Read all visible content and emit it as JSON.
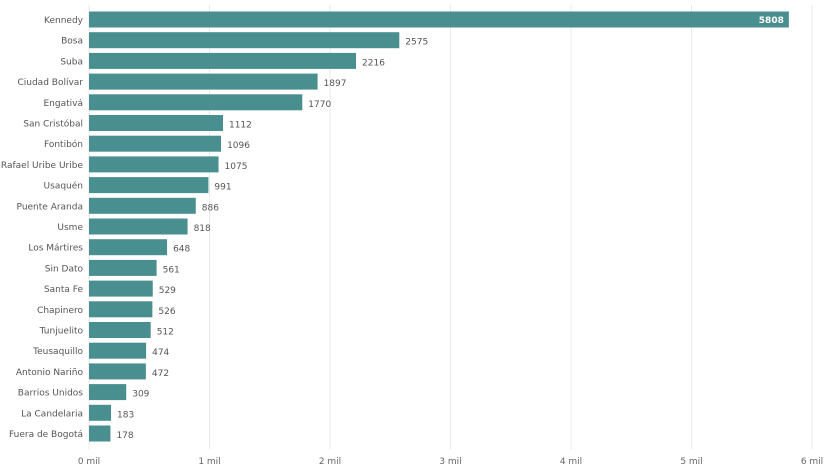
{
  "chart_data": {
    "type": "bar",
    "orientation": "horizontal",
    "title": "",
    "xlabel": "",
    "ylabel": "",
    "xlim": [
      0,
      6000
    ],
    "grid": true,
    "bar_color": "#4a8f8f",
    "categories": [
      "Kennedy",
      "Bosa",
      "Suba",
      "Ciudad Bolívar",
      "Engativá",
      "San Cristóbal",
      "Fontibón",
      "Rafael Uribe Uribe",
      "Usaquén",
      "Puente Aranda",
      "Usme",
      "Los Mártires",
      "Sin Dato",
      "Santa Fe",
      "Chapinero",
      "Tunjuelito",
      "Teusaquillo",
      "Antonio Nariño",
      "Barrios Unidos",
      "La Candelaria",
      "Fuera de Bogotá"
    ],
    "values": [
      5808,
      2575,
      2216,
      1897,
      1770,
      1112,
      1096,
      1075,
      991,
      886,
      818,
      648,
      561,
      529,
      526,
      512,
      474,
      472,
      309,
      183,
      178
    ],
    "x_ticks": [
      0,
      1000,
      2000,
      3000,
      4000,
      5000,
      6000
    ],
    "x_tick_labels": [
      "0 mil",
      "1 mil",
      "2 mil",
      "3 mil",
      "4 mil",
      "5 mil",
      "6 mil"
    ]
  }
}
